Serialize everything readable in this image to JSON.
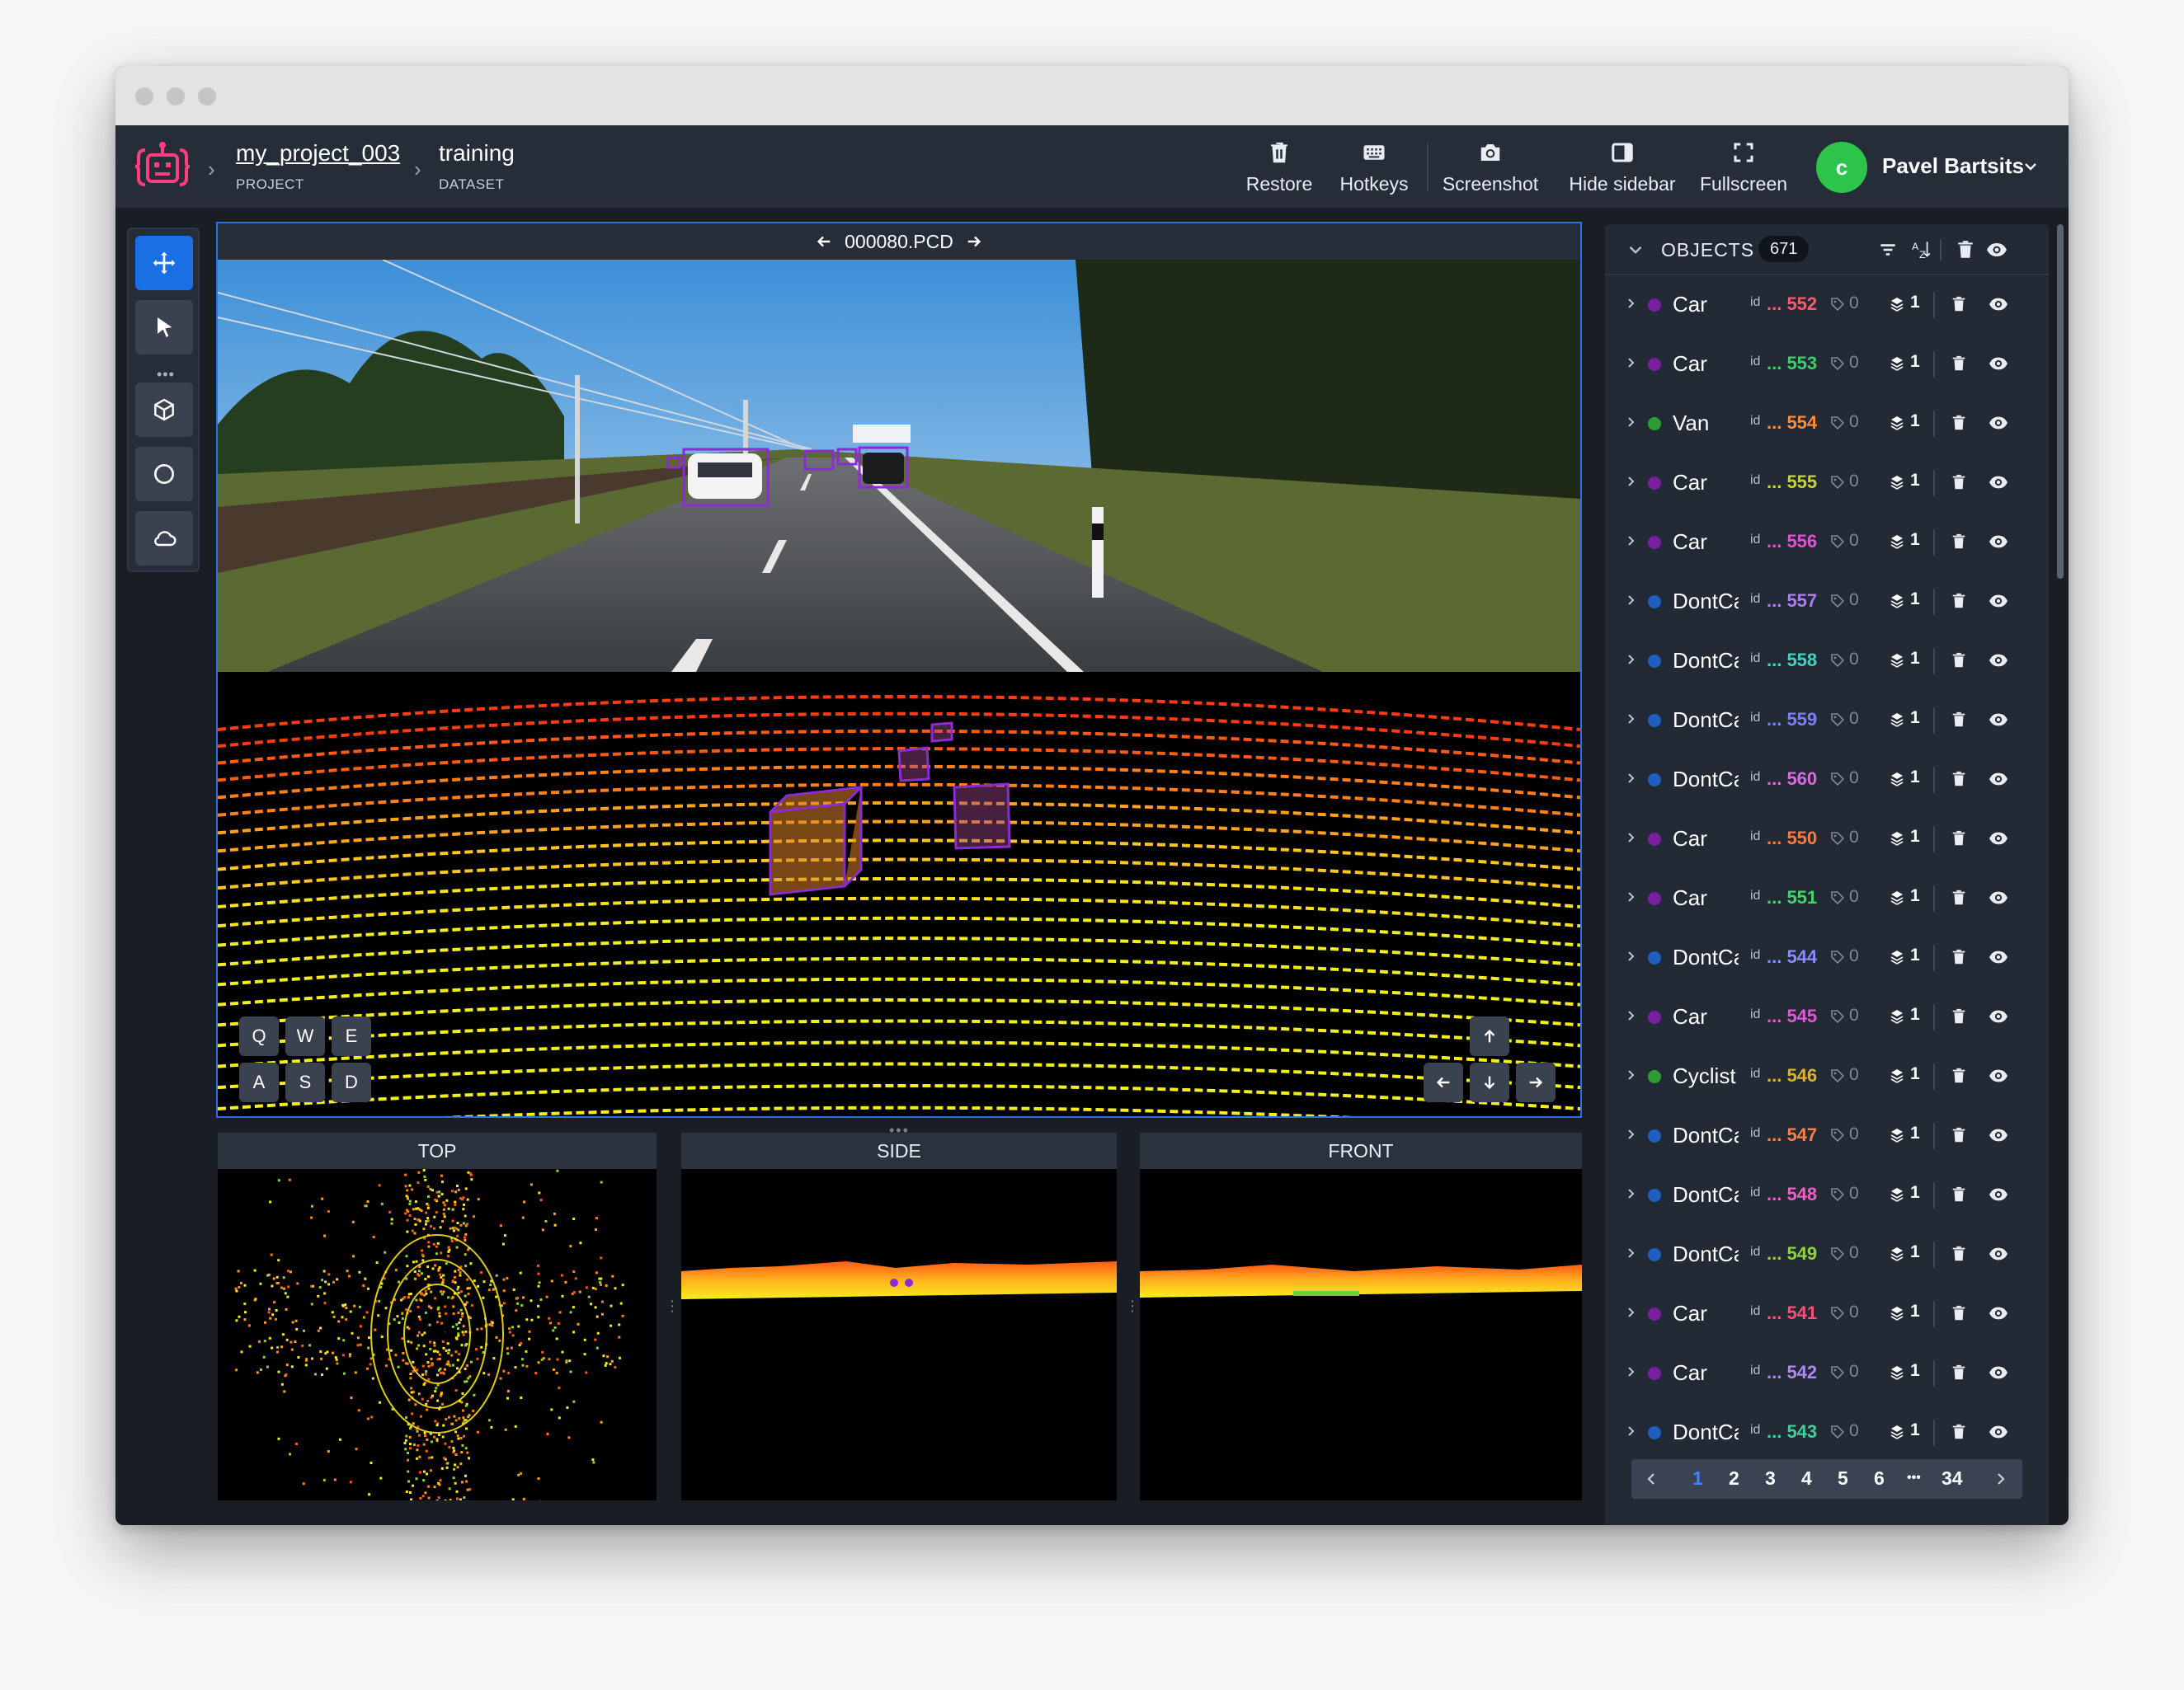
{
  "header": {
    "project_name": "my_project_003",
    "project_label": "PROJECT",
    "dataset_name": "training",
    "dataset_label": "DATASET",
    "actions": [
      {
        "label": "Restore",
        "icon": "trash-icon"
      },
      {
        "label": "Hotkeys",
        "icon": "keyboard-icon"
      },
      {
        "label": "Screenshot",
        "icon": "camera-icon"
      },
      {
        "label": "Hide sidebar",
        "icon": "sidebar-icon"
      },
      {
        "label": "Fullscreen",
        "icon": "fullscreen-icon"
      }
    ],
    "user": {
      "initial": "c",
      "name": "Pavel Bartsits"
    }
  },
  "main_view": {
    "file_name": "000080.PCD",
    "keys": [
      "Q",
      "W",
      "E",
      "A",
      "S",
      "D"
    ]
  },
  "sub_views": {
    "top": "TOP",
    "side": "SIDE",
    "front": "FRONT"
  },
  "objects_panel": {
    "title": "OBJECTS",
    "count": "671",
    "id_label": "id",
    "rows": [
      {
        "name": "Car",
        "id": "... 552",
        "color": "#7b1fa2",
        "id_color": "#ff5a6e",
        "tags": "0",
        "layer": "1"
      },
      {
        "name": "Car",
        "id": "... 553",
        "color": "#7b1fa2",
        "id_color": "#3ecf6b",
        "tags": "0",
        "layer": "1"
      },
      {
        "name": "Van",
        "id": "... 554",
        "color": "#2e9d34",
        "id_color": "#ff8c3a",
        "tags": "0",
        "layer": "1"
      },
      {
        "name": "Car",
        "id": "... 555",
        "color": "#7b1fa2",
        "id_color": "#c6d43a",
        "tags": "0",
        "layer": "1"
      },
      {
        "name": "Car",
        "id": "... 556",
        "color": "#7b1fa2",
        "id_color": "#e64fd6",
        "tags": "0",
        "layer": "1"
      },
      {
        "name": "DontCare",
        "id": "... 557",
        "color": "#1f5fbf",
        "id_color": "#b07cf2",
        "tags": "0",
        "layer": "1"
      },
      {
        "name": "DontCare",
        "id": "... 558",
        "color": "#1f5fbf",
        "id_color": "#43d1c0",
        "tags": "0",
        "layer": "1"
      },
      {
        "name": "DontCare",
        "id": "... 559",
        "color": "#1f5fbf",
        "id_color": "#7e7ff5",
        "tags": "0",
        "layer": "1"
      },
      {
        "name": "DontCare",
        "id": "... 560",
        "color": "#1f5fbf",
        "id_color": "#e066e6",
        "tags": "0",
        "layer": "1"
      },
      {
        "name": "Car",
        "id": "... 550",
        "color": "#7b1fa2",
        "id_color": "#ff7a3d",
        "tags": "0",
        "layer": "1"
      },
      {
        "name": "Car",
        "id": "... 551",
        "color": "#7b1fa2",
        "id_color": "#46d46b",
        "tags": "0",
        "layer": "1"
      },
      {
        "name": "DontCare",
        "id": "... 544",
        "color": "#1f5fbf",
        "id_color": "#8a8cff",
        "tags": "0",
        "layer": "1"
      },
      {
        "name": "Car",
        "id": "... 545",
        "color": "#7b1fa2",
        "id_color": "#e05ad8",
        "tags": "0",
        "layer": "1"
      },
      {
        "name": "Cyclist",
        "id": "... 546",
        "color": "#2e9d34",
        "id_color": "#d8b42f",
        "tags": "0",
        "layer": "1"
      },
      {
        "name": "DontCare",
        "id": "... 547",
        "color": "#1f5fbf",
        "id_color": "#ff7f4a",
        "tags": "0",
        "layer": "1"
      },
      {
        "name": "DontCare",
        "id": "... 548",
        "color": "#1f5fbf",
        "id_color": "#ef5fc8",
        "tags": "0",
        "layer": "1"
      },
      {
        "name": "DontCare",
        "id": "... 549",
        "color": "#1f5fbf",
        "id_color": "#8fd43a",
        "tags": "0",
        "layer": "1"
      },
      {
        "name": "Car",
        "id": "... 541",
        "color": "#7b1fa2",
        "id_color": "#ff4f7a",
        "tags": "0",
        "layer": "1"
      },
      {
        "name": "Car",
        "id": "... 542",
        "color": "#7b1fa2",
        "id_color": "#b088f0",
        "tags": "0",
        "layer": "1"
      },
      {
        "name": "DontCare",
        "id": "... 543",
        "color": "#1f5fbf",
        "id_color": "#3fd09a",
        "tags": "0",
        "layer": "1"
      }
    ],
    "pagination": {
      "pages": [
        "1",
        "2",
        "3",
        "4",
        "5",
        "6"
      ],
      "ellipsis": "•••",
      "last": "34",
      "active": "1"
    }
  },
  "colors": {
    "accent": "#1b6fe4",
    "avatar": "#2dc44b",
    "logo": "#ff3d7f",
    "header_bg": "#252d38",
    "app_bg": "#191d24"
  }
}
